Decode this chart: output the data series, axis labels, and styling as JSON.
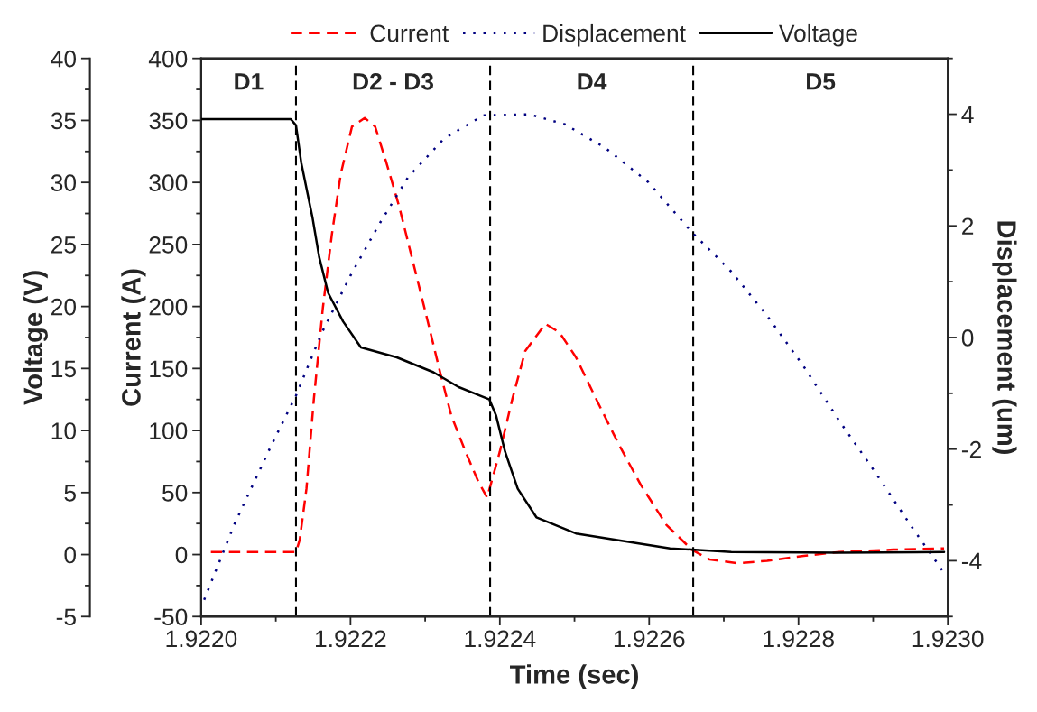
{
  "chart_data": {
    "type": "line",
    "xlabel": "Time (sec)",
    "ylabel": "Current (A)",
    "y2label": "Displacement (um)",
    "y3label": "Voltage (V)",
    "xlim": [
      1.922,
      1.923
    ],
    "xticks": [
      {
        "value": 1.922,
        "label": "1.9220"
      },
      {
        "value": 1.9221,
        "label": null
      },
      {
        "value": 1.9222,
        "label": "1.9222"
      },
      {
        "value": 1.9223,
        "label": null
      },
      {
        "value": 1.9224,
        "label": "1.9224"
      },
      {
        "value": 1.9225,
        "label": null
      },
      {
        "value": 1.9226,
        "label": "1.9226"
      },
      {
        "value": 1.9227,
        "label": null
      },
      {
        "value": 1.9228,
        "label": "1.9228"
      },
      {
        "value": 1.9229,
        "label": null
      },
      {
        "value": 1.923,
        "label": "1.9230"
      }
    ],
    "ylim": [
      -50,
      400
    ],
    "yticks": [
      -50,
      {
        "value": -25,
        "label": null
      },
      0,
      {
        "value": 25,
        "label": null
      },
      50,
      {
        "value": 75,
        "label": null
      },
      100,
      {
        "value": 125,
        "label": null
      },
      150,
      {
        "value": 175,
        "label": null
      },
      200,
      {
        "value": 225,
        "label": null
      },
      250,
      {
        "value": 275,
        "label": null
      },
      300,
      {
        "value": 325,
        "label": null
      },
      350,
      {
        "value": 375,
        "label": null
      },
      400
    ],
    "y2lim": [
      -5,
      5
    ],
    "y2ticks": [
      {
        "value": -5,
        "label": null
      },
      -4,
      {
        "value": -3,
        "label": null
      },
      -2,
      {
        "value": -1,
        "label": null
      },
      0,
      {
        "value": 1,
        "label": null
      },
      2,
      {
        "value": 3,
        "label": null
      },
      4,
      {
        "value": 5,
        "label": null
      }
    ],
    "y3lim": [
      -5,
      40
    ],
    "y3ticks": [
      -5,
      {
        "value": -2.5,
        "label": null
      },
      0,
      {
        "value": 2.5,
        "label": null
      },
      5,
      {
        "value": 7.5,
        "label": null
      },
      10,
      {
        "value": 12.5,
        "label": null
      },
      15,
      {
        "value": 17.5,
        "label": null
      },
      20,
      {
        "value": 22.5,
        "label": null
      },
      25,
      {
        "value": 27.5,
        "label": null
      },
      30,
      {
        "value": 32.5,
        "label": null
      },
      35,
      {
        "value": 37.5,
        "label": null
      },
      40
    ],
    "grid": false,
    "legend": "top",
    "series": [
      {
        "name": "Current",
        "color": "#ff0000",
        "line_style": "dashed",
        "axis": "y",
        "x": [
          1.922013,
          1.922127,
          1.922132,
          1.922141,
          1.922151,
          1.922163,
          1.922175,
          1.922187,
          1.922202,
          1.922219,
          1.922233,
          1.922248,
          1.922265,
          1.922282,
          1.922301,
          1.92232,
          1.922335,
          1.922354,
          1.922371,
          1.922383,
          1.9224,
          1.922417,
          1.922434,
          1.922461,
          1.92248,
          1.922502,
          1.922531,
          1.92256,
          1.922589,
          1.922623,
          1.922657,
          1.922681,
          1.922719,
          1.922758,
          1.922807,
          1.922855,
          1.922927,
          1.922995
        ],
        "values": [
          2,
          2,
          12,
          53,
          126,
          199,
          258,
          307,
          345,
          352,
          345,
          316,
          281,
          240,
          194,
          147,
          112,
          83,
          59,
          46,
          83,
          126,
          164,
          186,
          179,
          159,
          123,
          88,
          56,
          24,
          4,
          -4,
          -7,
          -5,
          -1,
          2,
          4,
          5
        ]
      },
      {
        "name": "Displacement",
        "color": "#000080",
        "line_style": "dotted",
        "axis": "y2",
        "x": [
          1.922004,
          1.922045,
          1.922093,
          1.922127,
          1.922161,
          1.9222,
          1.922238,
          1.922277,
          1.922325,
          1.922378,
          1.922439,
          1.922487,
          1.922541,
          1.922599,
          1.922657,
          1.92271,
          1.922758,
          1.922807,
          1.922855,
          1.922903,
          1.922952,
          1.922993
        ],
        "values": [
          -4.7,
          -3.33,
          -1.96,
          -1.04,
          0.07,
          1.11,
          2.02,
          2.87,
          3.56,
          3.98,
          4.0,
          3.82,
          3.4,
          2.78,
          1.89,
          1.18,
          0.39,
          -0.52,
          -1.5,
          -2.42,
          -3.4,
          -4.18
        ]
      },
      {
        "name": "Voltage",
        "color": "#000000",
        "line_style": "solid",
        "axis": "y3",
        "x": [
          1.922,
          1.92212,
          1.922127,
          1.922134,
          1.922149,
          1.922158,
          1.92217,
          1.92219,
          1.922214,
          1.922262,
          1.922311,
          1.922345,
          1.922374,
          1.922386,
          1.922395,
          1.922407,
          1.922424,
          1.922449,
          1.922502,
          1.922565,
          1.922628,
          1.92271,
          1.922855,
          1.922995
        ],
        "values": [
          35.1,
          35.1,
          34.6,
          31.6,
          27.2,
          24.0,
          21.1,
          18.8,
          16.7,
          15.9,
          14.7,
          13.5,
          12.8,
          12.5,
          11.2,
          8.3,
          5.3,
          3.0,
          1.7,
          1.1,
          0.5,
          0.2,
          0.15,
          0.2
        ]
      }
    ],
    "ref_lines": [
      {
        "axis": "x",
        "value": 1.922127,
        "color": "#000000",
        "line_style": "dashed"
      },
      {
        "axis": "x",
        "value": 1.922387,
        "color": "#000000",
        "line_style": "dashed"
      },
      {
        "axis": "x",
        "value": 1.922659,
        "color": "#000000",
        "line_style": "dashed"
      }
    ],
    "annotations": [
      "D1",
      "D2 - D3",
      "D4",
      "D5"
    ]
  }
}
